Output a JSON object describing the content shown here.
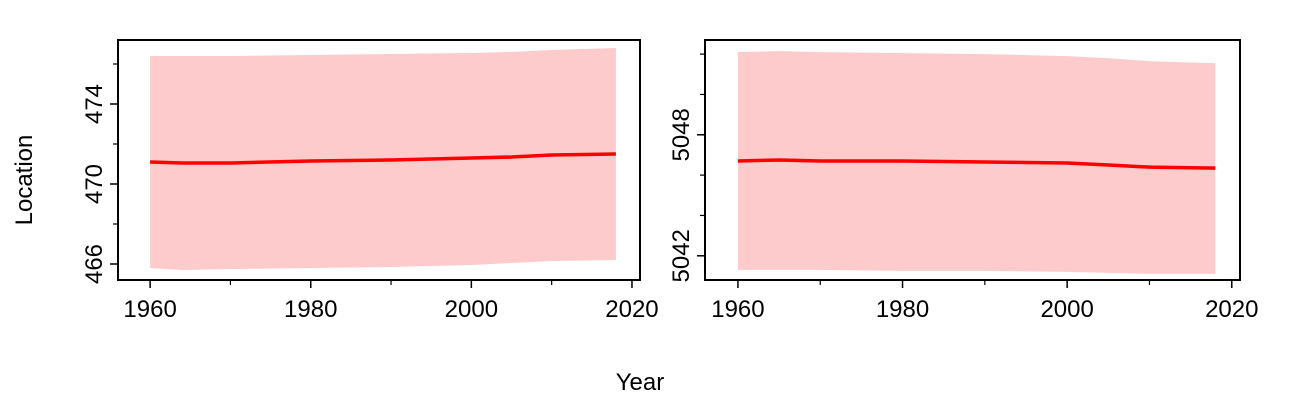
{
  "figure": {
    "xlabel": "Year",
    "ylabel": "Location"
  },
  "colors": {
    "line": "#ff0000",
    "band": "#fdcbcb",
    "axis": "#000000"
  },
  "chart_data": [
    {
      "type": "line",
      "title": "",
      "xlabel": "Year",
      "ylabel": "Location",
      "xlim": [
        1956,
        2021
      ],
      "ylim": [
        465.2,
        477.2
      ],
      "x_ticks": [
        1960,
        1980,
        2000,
        2020
      ],
      "x_minor_ticks": [
        1970,
        1990,
        2010
      ],
      "y_ticks": [
        466,
        470,
        474
      ],
      "y_minor_ticks": [
        468,
        472,
        476
      ],
      "grid": false,
      "series": [
        {
          "role": "estimate",
          "x": [
            1960,
            1964,
            1970,
            1980,
            1990,
            2000,
            2005,
            2010,
            2018
          ],
          "y": [
            471.1,
            471.05,
            471.05,
            471.15,
            471.2,
            471.3,
            471.35,
            471.45,
            471.5
          ]
        },
        {
          "role": "upper",
          "x": [
            1960,
            1964,
            1970,
            1980,
            1990,
            2000,
            2005,
            2010,
            2018
          ],
          "y": [
            476.4,
            476.4,
            476.4,
            476.45,
            476.5,
            476.55,
            476.6,
            476.7,
            476.8
          ]
        },
        {
          "role": "lower",
          "x": [
            1960,
            1964,
            1970,
            1980,
            1990,
            2000,
            2005,
            2010,
            2018
          ],
          "y": [
            465.8,
            465.7,
            465.75,
            465.8,
            465.85,
            465.95,
            466.05,
            466.15,
            466.2
          ]
        }
      ]
    },
    {
      "type": "line",
      "title": "",
      "xlabel": "Year",
      "ylabel": "",
      "xlim": [
        1956,
        2021
      ],
      "ylim": [
        5040.8,
        5052.7
      ],
      "x_ticks": [
        1960,
        1980,
        2000,
        2020
      ],
      "x_minor_ticks": [
        1970,
        1990,
        2010
      ],
      "y_ticks": [
        5042,
        5048
      ],
      "y_minor_ticks": [
        5044,
        5046,
        5050,
        5052
      ],
      "grid": false,
      "series": [
        {
          "role": "estimate",
          "x": [
            1960,
            1965,
            1970,
            1980,
            1990,
            2000,
            2005,
            2010,
            2018
          ],
          "y": [
            5046.7,
            5046.75,
            5046.7,
            5046.7,
            5046.65,
            5046.6,
            5046.5,
            5046.4,
            5046.35
          ]
        },
        {
          "role": "upper",
          "x": [
            1960,
            1965,
            1970,
            1980,
            1990,
            2000,
            2005,
            2010,
            2018
          ],
          "y": [
            5052.1,
            5052.15,
            5052.1,
            5052.05,
            5052.0,
            5051.9,
            5051.8,
            5051.65,
            5051.55
          ]
        },
        {
          "role": "lower",
          "x": [
            1960,
            1965,
            1970,
            1980,
            1990,
            2000,
            2005,
            2010,
            2018
          ],
          "y": [
            5041.3,
            5041.3,
            5041.3,
            5041.25,
            5041.25,
            5041.2,
            5041.15,
            5041.1,
            5041.1
          ]
        }
      ]
    }
  ]
}
